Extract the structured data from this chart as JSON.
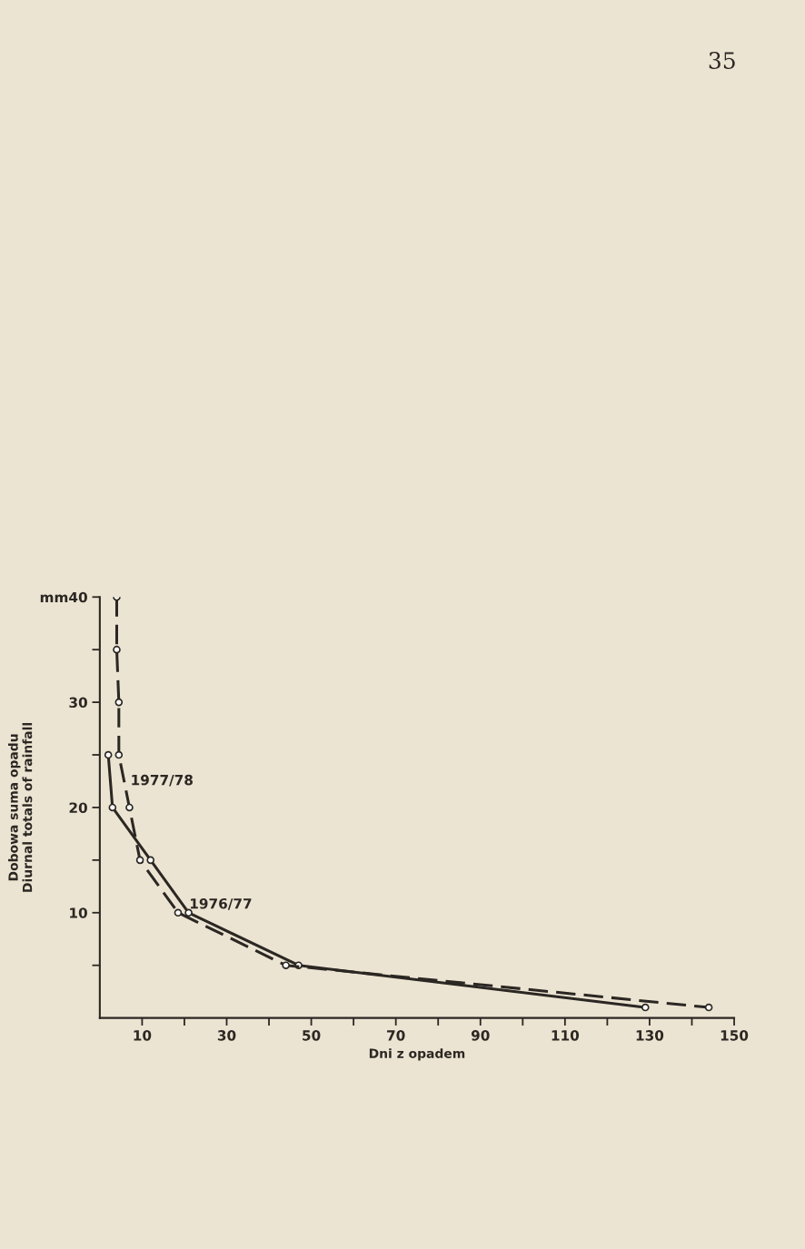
{
  "chart_data": {
    "type": "line",
    "xlabel": "Dni z opadem",
    "ylabel": "Dobowa suma opadu\nDiurnal totals of rainfall",
    "annotations": [
      "35"
    ],
    "series": [
      {
        "name": "1976/77",
        "color": "#2b2723",
        "line_style": "solid",
        "x": [
          2,
          3,
          12,
          21,
          47,
          129
        ],
        "values": [
          25,
          20,
          15,
          10,
          5,
          1
        ]
      },
      {
        "name": "1977/78",
        "color": "#2b2723",
        "line_style": "dashed",
        "x": [
          4,
          4,
          4.5,
          4.5,
          7,
          9.5,
          18.5,
          44,
          144
        ],
        "values": [
          40,
          35,
          30,
          25,
          20,
          15,
          10,
          5,
          1
        ]
      }
    ],
    "marker": "circle",
    "xlim": [
      0,
      150
    ],
    "xticks": [
      10,
      {
        "value": 20,
        "label": null
      },
      30,
      {
        "value": 40,
        "label": null
      },
      50,
      {
        "value": 60,
        "label": null
      },
      70,
      {
        "value": 80,
        "label": null
      },
      90,
      {
        "value": 100,
        "label": null
      },
      110,
      {
        "value": 120,
        "label": null
      },
      130,
      {
        "value": 140,
        "label": null
      },
      150
    ],
    "ylim": [
      0,
      40
    ],
    "yticks": [
      {
        "value": 5,
        "label": null
      },
      10,
      {
        "value": 15,
        "label": null
      },
      20,
      {
        "value": 25,
        "label": null
      },
      30,
      {
        "value": 35,
        "label": null
      },
      {
        "value": 40,
        "label": "mm40"
      }
    ],
    "grid": false,
    "legend": false
  }
}
